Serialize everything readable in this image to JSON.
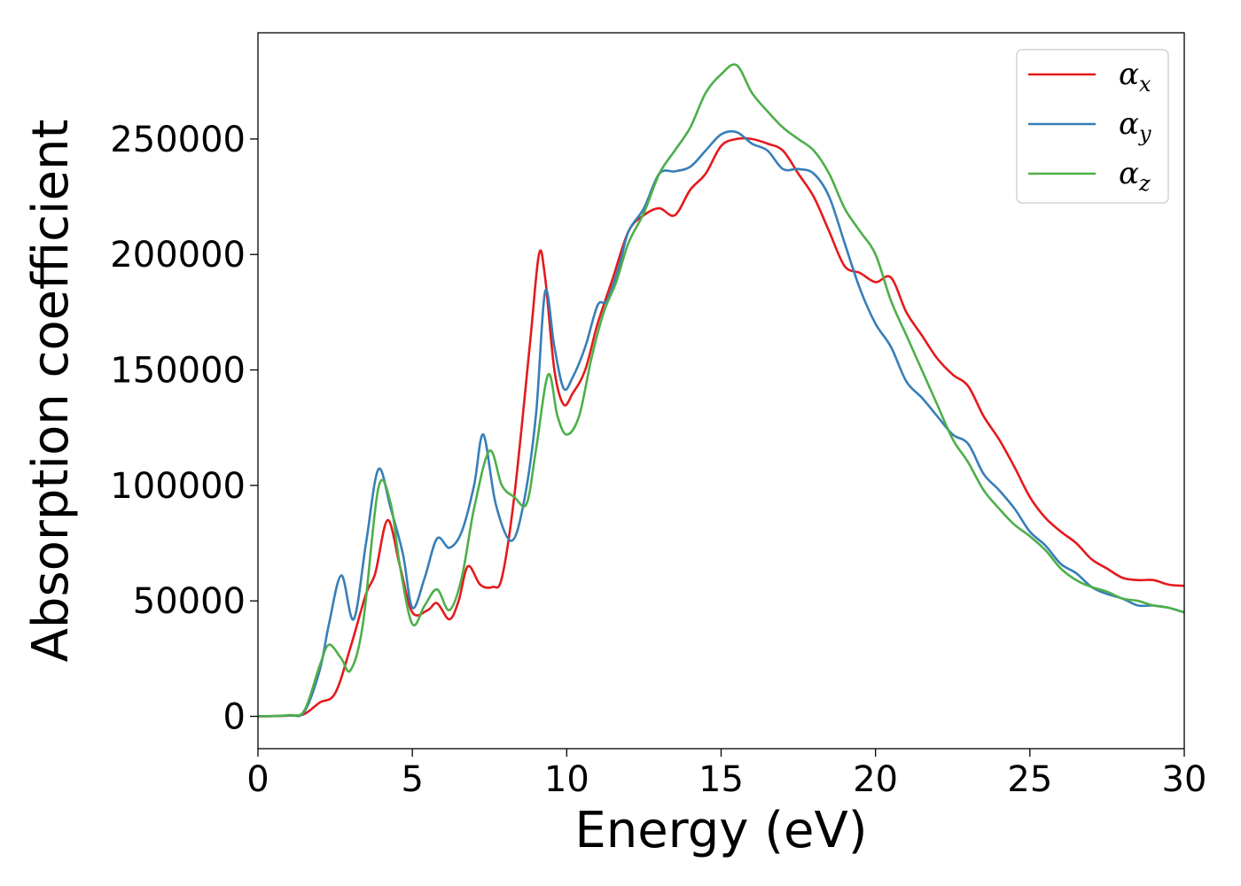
{
  "chart_data": {
    "type": "line",
    "title": "",
    "xlabel": "Energy (eV)",
    "ylabel": "Absorption coefficient",
    "xlim": [
      0,
      30
    ],
    "ylim": [
      -14000,
      296000
    ],
    "grid": false,
    "legend_position": "top-right",
    "x_ticks": [
      "0",
      "5",
      "10",
      "15",
      "20",
      "25",
      "30"
    ],
    "x_tick_values": [
      0,
      5,
      10,
      15,
      20,
      25,
      30
    ],
    "y_ticks": [
      "0",
      "50000",
      "100000",
      "150000",
      "200000",
      "250000"
    ],
    "y_tick_values": [
      0,
      50000,
      100000,
      150000,
      200000,
      250000
    ],
    "series": [
      {
        "name": "αx",
        "legend_base": "α",
        "legend_sub": "x",
        "color": "#e41a1c",
        "points": [
          [
            0,
            0
          ],
          [
            1,
            300
          ],
          [
            1.5,
            1000
          ],
          [
            2,
            6000
          ],
          [
            2.5,
            10000
          ],
          [
            3,
            30000
          ],
          [
            3.5,
            53000
          ],
          [
            3.8,
            62000
          ],
          [
            4.2,
            85000
          ],
          [
            4.6,
            65000
          ],
          [
            5,
            45000
          ],
          [
            5.5,
            46000
          ],
          [
            5.8,
            49000
          ],
          [
            6.2,
            42000
          ],
          [
            6.5,
            50000
          ],
          [
            6.8,
            65000
          ],
          [
            7.2,
            57000
          ],
          [
            7.6,
            56000
          ],
          [
            7.9,
            60000
          ],
          [
            8.3,
            95000
          ],
          [
            8.8,
            160000
          ],
          [
            9.1,
            200000
          ],
          [
            9.3,
            190000
          ],
          [
            9.6,
            150000
          ],
          [
            9.9,
            135000
          ],
          [
            10.2,
            140000
          ],
          [
            10.6,
            150000
          ],
          [
            11,
            170000
          ],
          [
            11.5,
            190000
          ],
          [
            12,
            210000
          ],
          [
            12.5,
            217000
          ],
          [
            13,
            220000
          ],
          [
            13.5,
            217000
          ],
          [
            14,
            228000
          ],
          [
            14.5,
            235000
          ],
          [
            15,
            247000
          ],
          [
            15.5,
            250000
          ],
          [
            16,
            250000
          ],
          [
            16.5,
            248000
          ],
          [
            17,
            245000
          ],
          [
            17.5,
            235000
          ],
          [
            18,
            225000
          ],
          [
            18.5,
            210000
          ],
          [
            19,
            195000
          ],
          [
            19.5,
            192000
          ],
          [
            20,
            188000
          ],
          [
            20.5,
            190000
          ],
          [
            21,
            175000
          ],
          [
            21.5,
            165000
          ],
          [
            22,
            155000
          ],
          [
            22.5,
            148000
          ],
          [
            23,
            143000
          ],
          [
            23.5,
            130000
          ],
          [
            24,
            120000
          ],
          [
            24.5,
            108000
          ],
          [
            25,
            95000
          ],
          [
            25.5,
            86000
          ],
          [
            26,
            80000
          ],
          [
            26.5,
            75000
          ],
          [
            27,
            68000
          ],
          [
            27.5,
            64000
          ],
          [
            28,
            60000
          ],
          [
            28.5,
            59000
          ],
          [
            29,
            59000
          ],
          [
            29.5,
            57000
          ],
          [
            30,
            56500
          ]
        ]
      },
      {
        "name": "αy",
        "legend_base": "α",
        "legend_sub": "y",
        "color": "#377eb8",
        "points": [
          [
            0,
            0
          ],
          [
            1,
            400
          ],
          [
            1.5,
            2000
          ],
          [
            2,
            20000
          ],
          [
            2.3,
            40000
          ],
          [
            2.7,
            61000
          ],
          [
            3.1,
            42000
          ],
          [
            3.5,
            75000
          ],
          [
            3.9,
            107000
          ],
          [
            4.3,
            90000
          ],
          [
            4.7,
            70000
          ],
          [
            5,
            47000
          ],
          [
            5.4,
            60000
          ],
          [
            5.8,
            77000
          ],
          [
            6.2,
            73000
          ],
          [
            6.6,
            80000
          ],
          [
            7,
            100000
          ],
          [
            7.3,
            122000
          ],
          [
            7.7,
            92000
          ],
          [
            8.2,
            76000
          ],
          [
            8.6,
            92000
          ],
          [
            9,
            130000
          ],
          [
            9.3,
            184000
          ],
          [
            9.6,
            160000
          ],
          [
            9.9,
            142000
          ],
          [
            10.2,
            147000
          ],
          [
            10.6,
            160000
          ],
          [
            11,
            178000
          ],
          [
            11.3,
            180000
          ],
          [
            11.7,
            195000
          ],
          [
            12,
            210000
          ],
          [
            12.5,
            220000
          ],
          [
            13,
            235000
          ],
          [
            13.5,
            236000
          ],
          [
            14,
            238000
          ],
          [
            14.5,
            245000
          ],
          [
            15,
            252000
          ],
          [
            15.5,
            253000
          ],
          [
            16,
            248000
          ],
          [
            16.5,
            245000
          ],
          [
            17,
            237000
          ],
          [
            17.5,
            237000
          ],
          [
            18,
            235000
          ],
          [
            18.5,
            225000
          ],
          [
            19,
            205000
          ],
          [
            19.5,
            185000
          ],
          [
            20,
            170000
          ],
          [
            20.5,
            160000
          ],
          [
            21,
            145000
          ],
          [
            21.5,
            138000
          ],
          [
            22,
            130000
          ],
          [
            22.5,
            122000
          ],
          [
            23,
            118000
          ],
          [
            23.5,
            105000
          ],
          [
            24,
            98000
          ],
          [
            24.5,
            90000
          ],
          [
            25,
            80000
          ],
          [
            25.5,
            74000
          ],
          [
            26,
            66000
          ],
          [
            26.5,
            62000
          ],
          [
            27,
            56000
          ],
          [
            27.5,
            53000
          ],
          [
            28,
            51000
          ],
          [
            28.5,
            48000
          ],
          [
            29,
            48000
          ],
          [
            29.5,
            47000
          ],
          [
            30,
            45000
          ]
        ]
      },
      {
        "name": "αz",
        "legend_base": "α",
        "legend_sub": "z",
        "color": "#4daf4a",
        "points": [
          [
            0,
            0
          ],
          [
            1,
            500
          ],
          [
            1.5,
            2500
          ],
          [
            2,
            22000
          ],
          [
            2.3,
            31000
          ],
          [
            2.7,
            25000
          ],
          [
            3,
            20000
          ],
          [
            3.4,
            40000
          ],
          [
            3.9,
            99000
          ],
          [
            4.3,
            92000
          ],
          [
            4.6,
            65000
          ],
          [
            5,
            40000
          ],
          [
            5.4,
            48000
          ],
          [
            5.8,
            55000
          ],
          [
            6.2,
            46000
          ],
          [
            6.6,
            60000
          ],
          [
            7,
            90000
          ],
          [
            7.5,
            115000
          ],
          [
            7.9,
            100000
          ],
          [
            8.3,
            95000
          ],
          [
            8.7,
            92000
          ],
          [
            9,
            115000
          ],
          [
            9.4,
            148000
          ],
          [
            9.7,
            130000
          ],
          [
            10,
            122000
          ],
          [
            10.4,
            130000
          ],
          [
            10.8,
            155000
          ],
          [
            11.2,
            175000
          ],
          [
            11.6,
            188000
          ],
          [
            12,
            205000
          ],
          [
            12.5,
            218000
          ],
          [
            13,
            235000
          ],
          [
            13.5,
            245000
          ],
          [
            14,
            255000
          ],
          [
            14.5,
            270000
          ],
          [
            15,
            278000
          ],
          [
            15.5,
            282000
          ],
          [
            16,
            270000
          ],
          [
            16.5,
            262000
          ],
          [
            17,
            255000
          ],
          [
            17.5,
            250000
          ],
          [
            18,
            245000
          ],
          [
            18.5,
            235000
          ],
          [
            19,
            220000
          ],
          [
            19.5,
            210000
          ],
          [
            20,
            200000
          ],
          [
            20.5,
            180000
          ],
          [
            21,
            165000
          ],
          [
            21.5,
            150000
          ],
          [
            22,
            135000
          ],
          [
            22.5,
            120000
          ],
          [
            23,
            110000
          ],
          [
            23.5,
            98000
          ],
          [
            24,
            90000
          ],
          [
            24.5,
            83000
          ],
          [
            25,
            78000
          ],
          [
            25.5,
            72000
          ],
          [
            26,
            64000
          ],
          [
            26.5,
            59000
          ],
          [
            27,
            56000
          ],
          [
            27.5,
            54000
          ],
          [
            28,
            51000
          ],
          [
            28.5,
            50000
          ],
          [
            29,
            48000
          ],
          [
            29.5,
            47000
          ],
          [
            30,
            45000
          ]
        ]
      }
    ]
  }
}
